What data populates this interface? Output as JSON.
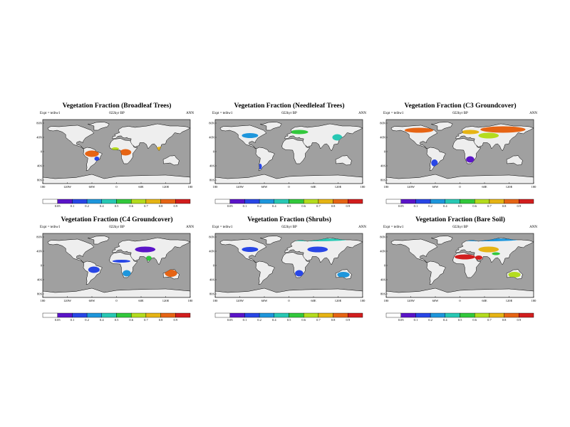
{
  "colors": {
    "ocean": "#a0a0a0",
    "land_background": "#eeeeee",
    "scale": [
      "#ffffff",
      "#5a14c8",
      "#2846e6",
      "#1e96dc",
      "#28c8b4",
      "#32c83c",
      "#b4dc1e",
      "#e6b414",
      "#e66414",
      "#d21e1e"
    ]
  },
  "common": {
    "expt": "Expt = teibw1",
    "period": "022kyr BP",
    "season": "ANN",
    "lat_ticks": [
      "80N",
      "40N",
      "0",
      "40S",
      "80S"
    ],
    "lon_ticks": [
      "180",
      "120W",
      "60W",
      "0",
      "60E",
      "120E",
      "180"
    ],
    "colorbar_labels": [
      "0.05",
      "0.1",
      "0.2",
      "0.4",
      "0.5",
      "0.6",
      "0.7",
      "0.8",
      "0.9"
    ]
  },
  "panels": [
    {
      "title": "Vegetation Fraction (Broadleaf Trees)"
    },
    {
      "title": "Vegetation Fraction (Needleleaf Trees)"
    },
    {
      "title": "Vegetation Fraction (C3 Groundcover)"
    },
    {
      "title": "Vegetation Fraction (C4 Groundcover)"
    },
    {
      "title": "Vegetation Fraction (Shrubs)"
    },
    {
      "title": "Vegetation Fraction (Bare Soil)"
    }
  ],
  "map_data": [
    {
      "panel": 0,
      "fields": [
        {
          "region": "amazon",
          "level": 8
        },
        {
          "region": "central-africa",
          "level": 8
        },
        {
          "region": "southeast-asia",
          "level": 7
        },
        {
          "region": "west-africa",
          "level": 6
        },
        {
          "region": "new-guinea",
          "level": 5
        },
        {
          "region": "southeast-brazil",
          "level": 2
        }
      ]
    },
    {
      "panel": 1,
      "fields": [
        {
          "region": "north-america-mid",
          "level": 3
        },
        {
          "region": "europe",
          "level": 5
        },
        {
          "region": "east-asia",
          "level": 4
        },
        {
          "region": "patagonia",
          "level": 2
        }
      ]
    },
    {
      "panel": 2,
      "fields": [
        {
          "region": "siberia",
          "level": 8
        },
        {
          "region": "north-america-north",
          "level": 8
        },
        {
          "region": "europe",
          "level": 7
        },
        {
          "region": "central-asia",
          "level": 6
        },
        {
          "region": "south-america-south",
          "level": 2
        },
        {
          "region": "southern-africa",
          "level": 1
        }
      ]
    },
    {
      "panel": 3,
      "fields": [
        {
          "region": "sahel",
          "level": 2
        },
        {
          "region": "brazil",
          "level": 2
        },
        {
          "region": "australia-north",
          "level": 8
        },
        {
          "region": "india",
          "level": 5
        },
        {
          "region": "southern-africa",
          "level": 3
        },
        {
          "region": "central-asia",
          "level": 1
        }
      ]
    },
    {
      "panel": 4,
      "fields": [
        {
          "region": "central-asia",
          "level": 2
        },
        {
          "region": "north-america-mid",
          "level": 2
        },
        {
          "region": "australia",
          "level": 3
        },
        {
          "region": "southern-africa",
          "level": 2
        },
        {
          "region": "arctic",
          "level": 4
        }
      ]
    },
    {
      "panel": 5,
      "fields": [
        {
          "region": "sahara",
          "level": 9
        },
        {
          "region": "arabia",
          "level": 9
        },
        {
          "region": "central-asia",
          "level": 7
        },
        {
          "region": "arctic",
          "level": 3
        },
        {
          "region": "australia",
          "level": 6
        },
        {
          "region": "tibet",
          "level": 5
        }
      ]
    }
  ]
}
